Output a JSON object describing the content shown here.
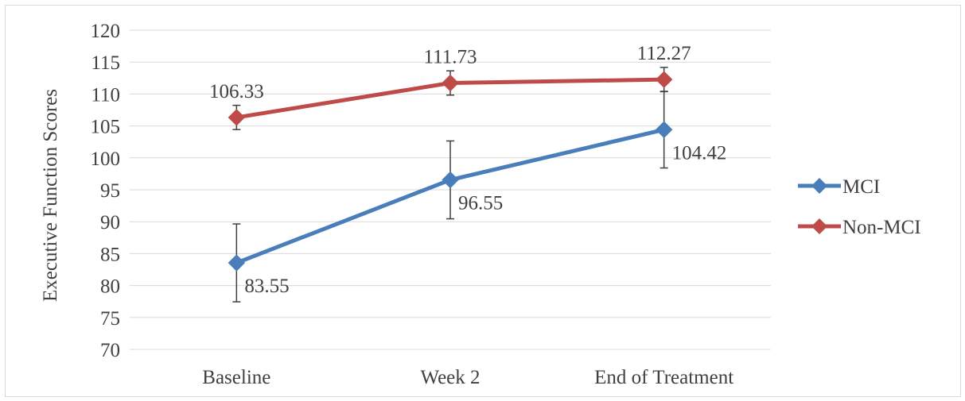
{
  "chart_data": {
    "type": "line",
    "title": "",
    "xlabel": "",
    "ylabel": "Executive Function Scores",
    "categories": [
      "Baseline",
      "Week 2",
      "End of Treatment"
    ],
    "ylim": [
      70,
      120
    ],
    "ytick_step": 5,
    "grid": true,
    "legend_position": "right",
    "series": [
      {
        "name": "MCI",
        "color": "#4a7ebb",
        "marker": "diamond",
        "values": [
          83.55,
          96.55,
          104.42
        ],
        "labels": [
          "83.55",
          "96.55",
          "104.42"
        ],
        "label_side": "below-right",
        "error": [
          6.1,
          6.1,
          6.0
        ]
      },
      {
        "name": "Non-MCI",
        "color": "#be4b48",
        "marker": "diamond",
        "values": [
          106.33,
          111.73,
          112.27
        ],
        "labels": [
          "106.33",
          "111.73",
          "112.27"
        ],
        "label_side": "above",
        "error": [
          1.9,
          1.9,
          1.9
        ]
      }
    ]
  },
  "colors": {
    "gridline": "#d9d9d9",
    "errorbar": "#404040",
    "text": "#404040"
  }
}
